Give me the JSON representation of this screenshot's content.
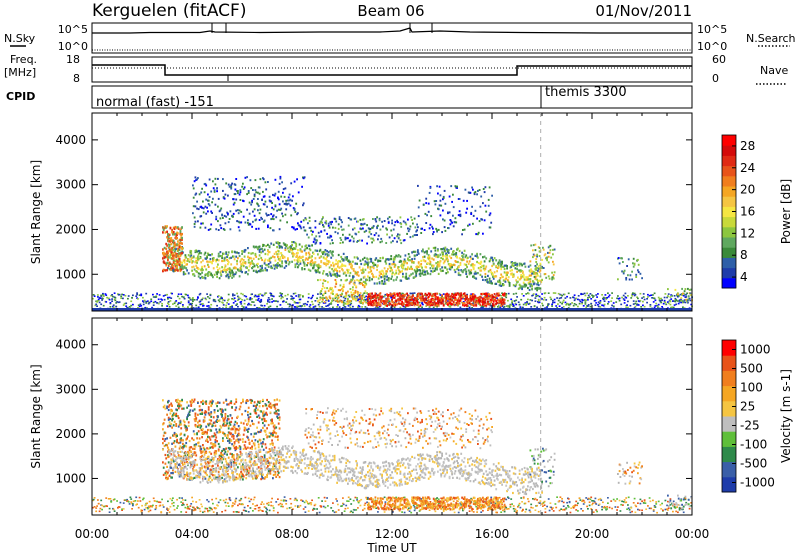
{
  "header": {
    "station": "Kerguelen (fitACF)",
    "beam": "Beam 06",
    "date": "01/Nov/2011"
  },
  "noise_panel": {
    "left_label": "N.Sky",
    "right_label": "N.Search",
    "left_ticks": [
      "10^5",
      "10^0"
    ],
    "right_ticks": [
      "10^5",
      "10^0"
    ]
  },
  "freq_panel": {
    "left_label_1": "Freq.",
    "left_label_2": "[MHz]",
    "left_ticks": [
      "18",
      "8"
    ],
    "right_label": "Nave",
    "right_ticks": [
      "60",
      "0"
    ]
  },
  "cpid_panel": {
    "label": "CPID",
    "mode_1": "normal (fast) -151",
    "mode_2": "themis 3300"
  },
  "time_axis": {
    "label": "Time UT",
    "ticks": [
      "00:00",
      "04:00",
      "08:00",
      "12:00",
      "16:00",
      "20:00",
      "00:00"
    ]
  },
  "chart_data": [
    {
      "type": "heatmap",
      "title": "",
      "xlabel": "",
      "ylabel": "Slant Range [km]",
      "xlim": [
        0,
        24
      ],
      "ylim": [
        180,
        4600
      ],
      "y_ticks": [
        "1000",
        "2000",
        "3000",
        "4000"
      ],
      "colorbar": {
        "label": "Power [dB]",
        "ticks": [
          "28",
          "24",
          "20",
          "16",
          "12",
          "8",
          "4"
        ],
        "range": [
          0,
          30
        ],
        "colors": [
          "#0000ff",
          "#1e3caa",
          "#2e5fa8",
          "#3a8a3a",
          "#5fa85f",
          "#8cc63f",
          "#c8d93a",
          "#f5e642",
          "#f5c542",
          "#f5a623",
          "#f07e1e",
          "#e8531a",
          "#e02a14",
          "#d40a0a",
          "#ff0000"
        ]
      },
      "features": [
        {
          "time": [
            2.8,
            3.5
          ],
          "range": [
            1000,
            2100
          ],
          "power": "16-28"
        },
        {
          "time": [
            3.0,
            17.0
          ],
          "range": [
            900,
            1900
          ],
          "power": "8-20"
        },
        {
          "time": [
            11.0,
            16.5
          ],
          "range": [
            300,
            600
          ],
          "power": "24-30"
        },
        {
          "time": [
            4.0,
            8.5
          ],
          "range": [
            2000,
            3200
          ],
          "power": "4-16"
        },
        {
          "time": [
            13.0,
            16.0
          ],
          "range": [
            1900,
            3000
          ],
          "power": "4-12"
        }
      ]
    },
    {
      "type": "heatmap",
      "title": "",
      "xlabel": "Time UT",
      "ylabel": "Slant Range [km]",
      "xlim": [
        0,
        24
      ],
      "ylim": [
        180,
        4600
      ],
      "y_ticks": [
        "1000",
        "2000",
        "3000",
        "4000"
      ],
      "colorbar": {
        "label": "Velocity [m s-1]",
        "ticks": [
          "1000",
          "500",
          "100",
          "25",
          "-25",
          "-100",
          "-500",
          "-1000"
        ],
        "colors": [
          "#1e3caa",
          "#3a5fa8",
          "#2e8a4a",
          "#5fbf3a",
          "#bebebe",
          "#f5c542",
          "#f5a623",
          "#f07e1e",
          "#e8531a",
          "#ff0000"
        ]
      },
      "features": [
        {
          "time": [
            2.8,
            7.5
          ],
          "range": [
            1000,
            2800
          ],
          "velocity": "-100 to -500"
        },
        {
          "time": [
            3.0,
            17.0
          ],
          "range": [
            900,
            1900
          ],
          "velocity": "ground scatter"
        },
        {
          "time": [
            11.0,
            16.5
          ],
          "range": [
            300,
            600
          ],
          "velocity": "-100 to -500"
        }
      ]
    }
  ]
}
